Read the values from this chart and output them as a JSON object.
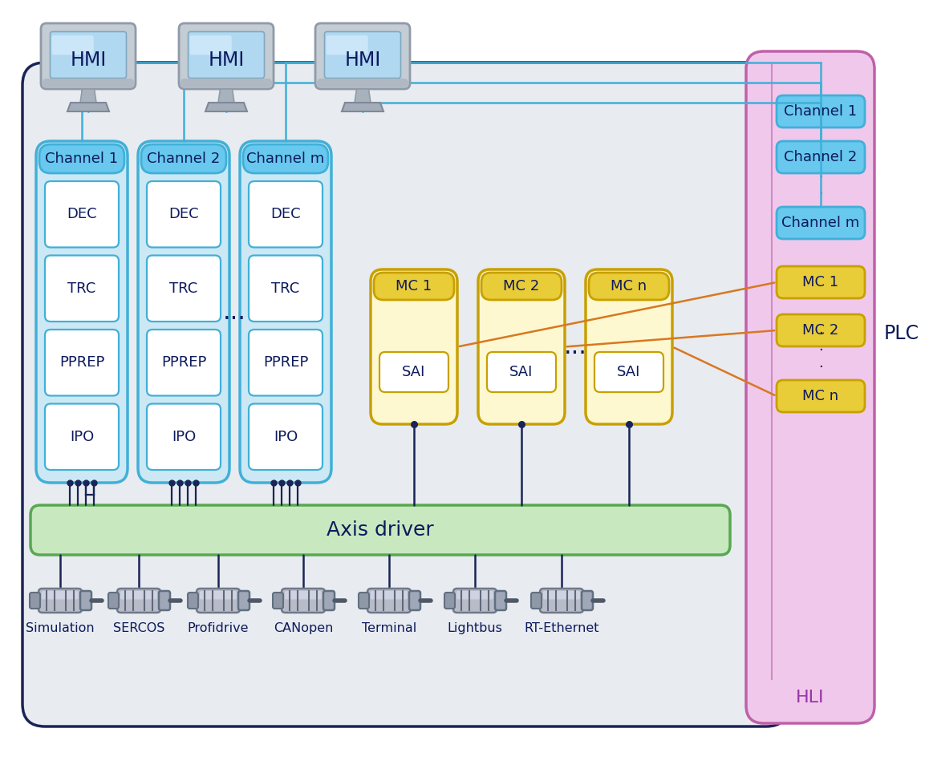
{
  "bg": "#ffffff",
  "main_bg": "#e8ebf0",
  "main_border": "#1a2456",
  "ch_bg": "#cce8f5",
  "ch_border": "#40b0d8",
  "ch_header_bg": "#68c8ee",
  "mod_bg": "#ffffff",
  "mc_bg": "#fef8d0",
  "mc_border": "#c8a000",
  "mc_header_bg": "#e8cc38",
  "plc_bg": "#f0c8ec",
  "plc_border": "#c060a8",
  "ad_bg": "#c8e8c0",
  "ad_border": "#58a850",
  "line_teal": "#40b0d8",
  "line_dark": "#1a2456",
  "line_orange": "#d87820",
  "hmi_outer": "#b0bcc8",
  "hmi_frame": "#c8d0d8",
  "hmi_screen": "#b0d8f0",
  "hmi_screen_light": "#e0f2ff",
  "hmi_stand": "#a8b0bc",
  "hmi_base": "#b0b8c4",
  "motor_body": "#b8bcc8",
  "motor_dark": "#808898",
  "motor_light": "#d0d4e0",
  "channels": [
    "Channel 1",
    "Channel 2",
    "Channel m"
  ],
  "ch_modules": [
    "DEC",
    "TRC",
    "PPREP",
    "IPO"
  ],
  "mc_labels": [
    "MC 1",
    "MC 2",
    "MC n"
  ],
  "plc_ch_labels": [
    "Channel 1",
    "Channel 2",
    "Channel m"
  ],
  "plc_mc_labels": [
    "MC 1",
    "MC 2",
    "MC n"
  ],
  "bus_labels": [
    "Simulation",
    "SERCOS",
    "Profidrive",
    "CANopen",
    "Terminal",
    "Lightbus",
    "RT-Ethernet"
  ],
  "figsize": [
    11.53,
    9.74
  ],
  "dpi": 100
}
